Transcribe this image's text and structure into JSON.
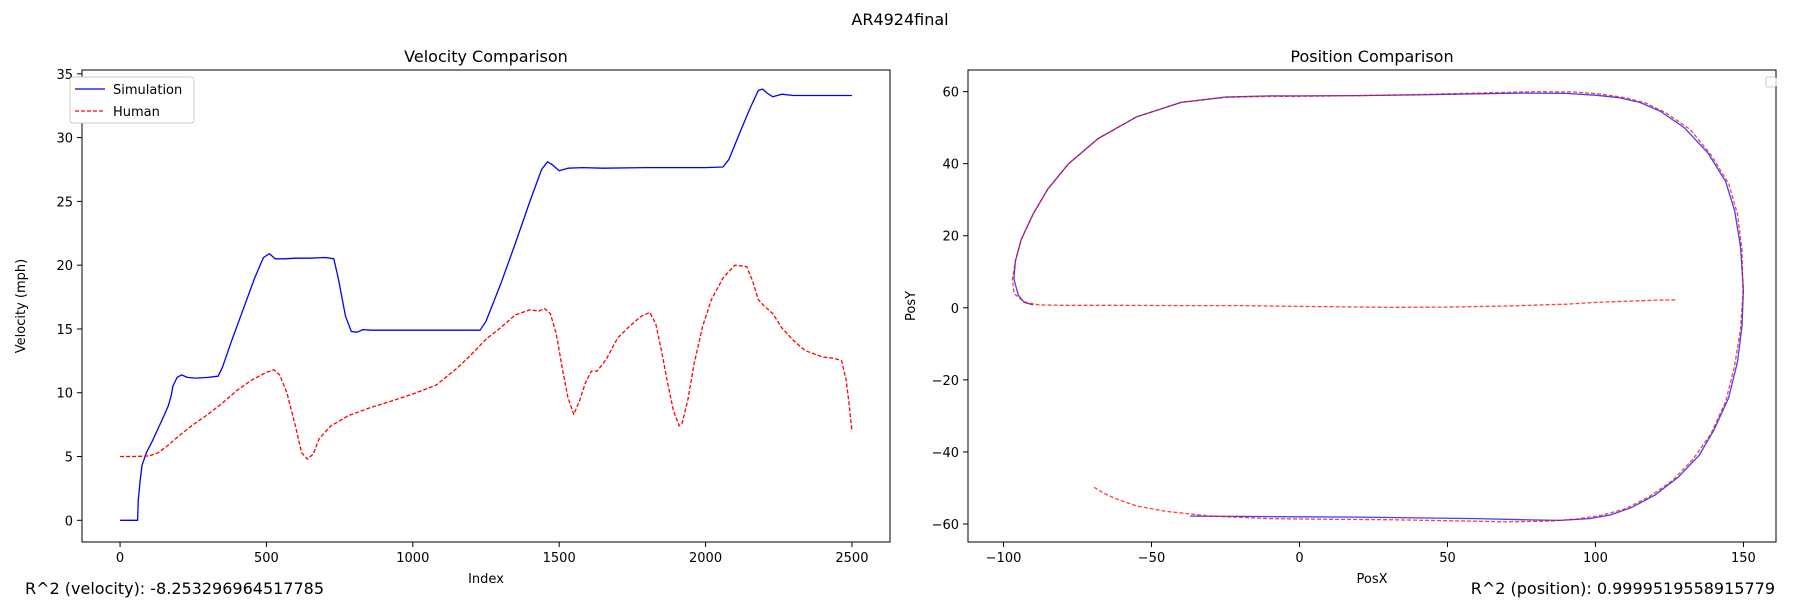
{
  "suptitle": "AR4924final",
  "footer": {
    "r2_velocity": "R^2 (velocity): -8.253296964517785",
    "r2_position": "R^2 (position): 0.9999519558915779"
  },
  "colors": {
    "simulation": "#0000ff",
    "human": "#ff0000"
  },
  "chart_data": [
    {
      "type": "line",
      "title": "Velocity Comparison",
      "xlabel": "Index",
      "ylabel": "Velocity (mph)",
      "xlim": [
        -130,
        2630
      ],
      "ylim": [
        -1.7,
        35.3
      ],
      "xticks": [
        0,
        500,
        1000,
        1500,
        2000,
        2500
      ],
      "yticks": [
        0,
        5,
        10,
        15,
        20,
        25,
        30,
        35
      ],
      "grid": false,
      "legend": "upper left",
      "series": [
        {
          "name": "Simulation",
          "color": "#0000ff",
          "style": "solid",
          "x": [
            0,
            60,
            62,
            68,
            75,
            90,
            110,
            130,
            150,
            165,
            175,
            180,
            195,
            210,
            230,
            260,
            300,
            335,
            350,
            380,
            420,
            460,
            490,
            510,
            530,
            560,
            600,
            650,
            700,
            730,
            745,
            770,
            790,
            810,
            830,
            860,
            900,
            1000,
            1100,
            1230,
            1250,
            1300,
            1350,
            1400,
            1440,
            1460,
            1475,
            1500,
            1530,
            1580,
            1650,
            1800,
            2000,
            2060,
            2080,
            2110,
            2150,
            2180,
            2195,
            2210,
            2230,
            2260,
            2300,
            2400,
            2500
          ],
          "y": [
            0,
            0,
            1.5,
            3,
            4.3,
            5.3,
            6.2,
            7.2,
            8.2,
            9.0,
            9.8,
            10.5,
            11.2,
            11.4,
            11.2,
            11.15,
            11.2,
            11.3,
            12.0,
            14.0,
            16.5,
            19.0,
            20.6,
            20.9,
            20.5,
            20.5,
            20.55,
            20.55,
            20.6,
            20.5,
            19.0,
            16.0,
            14.8,
            14.75,
            14.95,
            14.9,
            14.9,
            14.9,
            14.9,
            14.9,
            15.6,
            18.5,
            21.7,
            25.0,
            27.5,
            28.1,
            27.9,
            27.4,
            27.6,
            27.65,
            27.6,
            27.65,
            27.65,
            27.7,
            28.3,
            30.0,
            32.2,
            33.7,
            33.8,
            33.5,
            33.2,
            33.4,
            33.3,
            33.3,
            33.3
          ]
        },
        {
          "name": "Human",
          "color": "#ff0000",
          "style": "dashed",
          "x": [
            0,
            50,
            100,
            130,
            160,
            200,
            250,
            300,
            350,
            400,
            450,
            500,
            525,
            545,
            570,
            600,
            620,
            640,
            660,
            680,
            720,
            780,
            850,
            920,
            1000,
            1080,
            1150,
            1200,
            1250,
            1300,
            1350,
            1400,
            1430,
            1450,
            1470,
            1490,
            1510,
            1530,
            1550,
            1570,
            1590,
            1610,
            1630,
            1660,
            1700,
            1740,
            1780,
            1810,
            1830,
            1850,
            1870,
            1890,
            1910,
            1920,
            1940,
            1960,
            1990,
            2020,
            2060,
            2100,
            2140,
            2160,
            2180,
            2200,
            2230,
            2260,
            2300,
            2340,
            2400,
            2440,
            2465,
            2480,
            2490,
            2500
          ],
          "y": [
            5.0,
            5.0,
            5.05,
            5.3,
            5.8,
            6.6,
            7.5,
            8.3,
            9.2,
            10.2,
            11.0,
            11.6,
            11.8,
            11.4,
            10.0,
            7.3,
            5.3,
            4.8,
            5.2,
            6.4,
            7.4,
            8.2,
            8.8,
            9.3,
            9.9,
            10.6,
            11.9,
            13.0,
            14.2,
            15.1,
            16.1,
            16.5,
            16.4,
            16.6,
            16.2,
            14.6,
            12.0,
            9.6,
            8.3,
            9.4,
            10.8,
            11.7,
            11.7,
            12.6,
            14.3,
            15.2,
            16.0,
            16.3,
            15.4,
            13.2,
            10.8,
            8.6,
            7.4,
            7.6,
            9.5,
            12.2,
            15.2,
            17.3,
            19.0,
            20.0,
            19.9,
            18.8,
            17.3,
            16.8,
            16.2,
            15.1,
            14.1,
            13.3,
            12.8,
            12.7,
            12.5,
            11.0,
            9.2,
            7.0
          ]
        }
      ]
    },
    {
      "type": "line",
      "title": "Position Comparison",
      "xlabel": "PosX",
      "ylabel": "PosY",
      "xlim": [
        -112,
        161
      ],
      "ylim": [
        -65,
        66
      ],
      "xticks": [
        -100,
        -50,
        0,
        50,
        100,
        150
      ],
      "yticks": [
        -60,
        -40,
        -20,
        0,
        20,
        40,
        60
      ],
      "grid": false,
      "legend": "upper right (empty)",
      "series": [
        {
          "color": "#0000ff",
          "style": "solid",
          "x": [
            -90,
            -93,
            -95,
            -96.5,
            -96,
            -94,
            -90,
            -85,
            -78,
            -68,
            -55,
            -40,
            -25,
            -10,
            0,
            20,
            40,
            60,
            75,
            90,
            100,
            108,
            115,
            122,
            130,
            138,
            144,
            147,
            149,
            150,
            149.5,
            148,
            145,
            140,
            135,
            128,
            120,
            112,
            105,
            98,
            88,
            75,
            60,
            40,
            20,
            0,
            -20,
            -37
          ],
          "y": [
            0.8,
            1.5,
            3.5,
            8,
            13,
            19,
            26,
            33,
            40,
            47,
            53,
            57,
            58.5,
            58.8,
            58.8,
            58.9,
            59.1,
            59.4,
            59.6,
            59.5,
            59.0,
            58.3,
            57.0,
            54.5,
            50.0,
            43.0,
            35.0,
            27.0,
            17.0,
            5.0,
            -5.0,
            -15.0,
            -25.0,
            -34.0,
            -41.0,
            -47.0,
            -52.0,
            -55.5,
            -57.5,
            -58.5,
            -59.0,
            -58.8,
            -58.5,
            -58.3,
            -58.1,
            -58.0,
            -57.9,
            -57.8
          ]
        },
        {
          "color": "#ff0000",
          "style": "dashed",
          "x": [
            127,
            120,
            110,
            100,
            90,
            70,
            50,
            30,
            10,
            0,
            -20,
            -40,
            -60,
            -80,
            -88,
            -93,
            -96.5,
            -97,
            -96,
            -94,
            -90,
            -85,
            -78,
            -68,
            -55,
            -40,
            -25,
            -10,
            0,
            20,
            40,
            60,
            80,
            93,
            102,
            110,
            117,
            124,
            132,
            139,
            145,
            148,
            149.5,
            149.8,
            149,
            147,
            144,
            139,
            133,
            126,
            118,
            110,
            102,
            94,
            85,
            70,
            50,
            30,
            10,
            -10,
            -30,
            -45,
            -55,
            -62,
            -66,
            -70
          ],
          "y": [
            2.2,
            2.1,
            1.8,
            1.5,
            1.0,
            0.5,
            0.2,
            0.1,
            0.3,
            0.4,
            0.6,
            0.6,
            0.7,
            0.7,
            0.8,
            1.6,
            4.0,
            8.0,
            13.0,
            19.0,
            26.0,
            33.0,
            40.0,
            47.0,
            53.0,
            57.0,
            58.4,
            58.7,
            58.7,
            58.9,
            59.2,
            59.6,
            60.0,
            59.9,
            59.3,
            58.3,
            56.8,
            54.0,
            49.5,
            42.5,
            34.5,
            26.0,
            16.0,
            4.0,
            -6.0,
            -16.0,
            -26.0,
            -35.0,
            -42.0,
            -48.0,
            -52.5,
            -55.8,
            -57.6,
            -58.6,
            -59.2,
            -59.4,
            -59.1,
            -58.8,
            -58.7,
            -58.5,
            -57.8,
            -56.5,
            -55.0,
            -53.0,
            -51.5,
            -49.5
          ]
        }
      ]
    }
  ],
  "legend_labels": {
    "simulation": "Simulation",
    "human": "Human"
  }
}
